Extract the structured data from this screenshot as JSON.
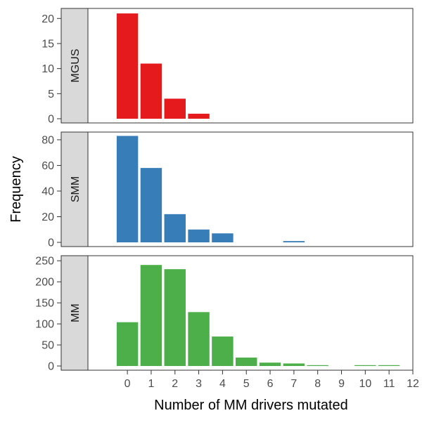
{
  "chart_data": {
    "type": "bar",
    "xlabel": "Number of MM drivers mutated",
    "ylabel": "Frequency",
    "x_ticks": [
      0,
      1,
      2,
      3,
      4,
      5,
      6,
      7,
      8,
      9,
      10,
      11,
      12
    ],
    "xlim": [
      -1.6,
      12
    ],
    "grid": false,
    "legend": "none",
    "panels": [
      {
        "name": "MGUS",
        "color": "#E41A1C",
        "ylim": [
          0,
          22
        ],
        "y_ticks": [
          0,
          5,
          10,
          15,
          20
        ],
        "x": [
          0,
          1,
          2,
          3
        ],
        "values": [
          21,
          11,
          4,
          1
        ]
      },
      {
        "name": "SMM",
        "color": "#377EB8",
        "ylim": [
          0,
          86
        ],
        "y_ticks": [
          0,
          20,
          40,
          60,
          80
        ],
        "x": [
          0,
          1,
          2,
          3,
          4,
          7
        ],
        "values": [
          83,
          58,
          22,
          10,
          7,
          1
        ]
      },
      {
        "name": "MM",
        "color": "#4DAF4A",
        "ylim": [
          0,
          262
        ],
        "y_ticks": [
          0,
          50,
          100,
          150,
          200,
          250
        ],
        "x": [
          0,
          1,
          2,
          3,
          4,
          5,
          6,
          7,
          8,
          10,
          11
        ],
        "values": [
          104,
          240,
          230,
          128,
          70,
          20,
          8,
          6,
          2,
          2,
          2
        ]
      }
    ]
  }
}
